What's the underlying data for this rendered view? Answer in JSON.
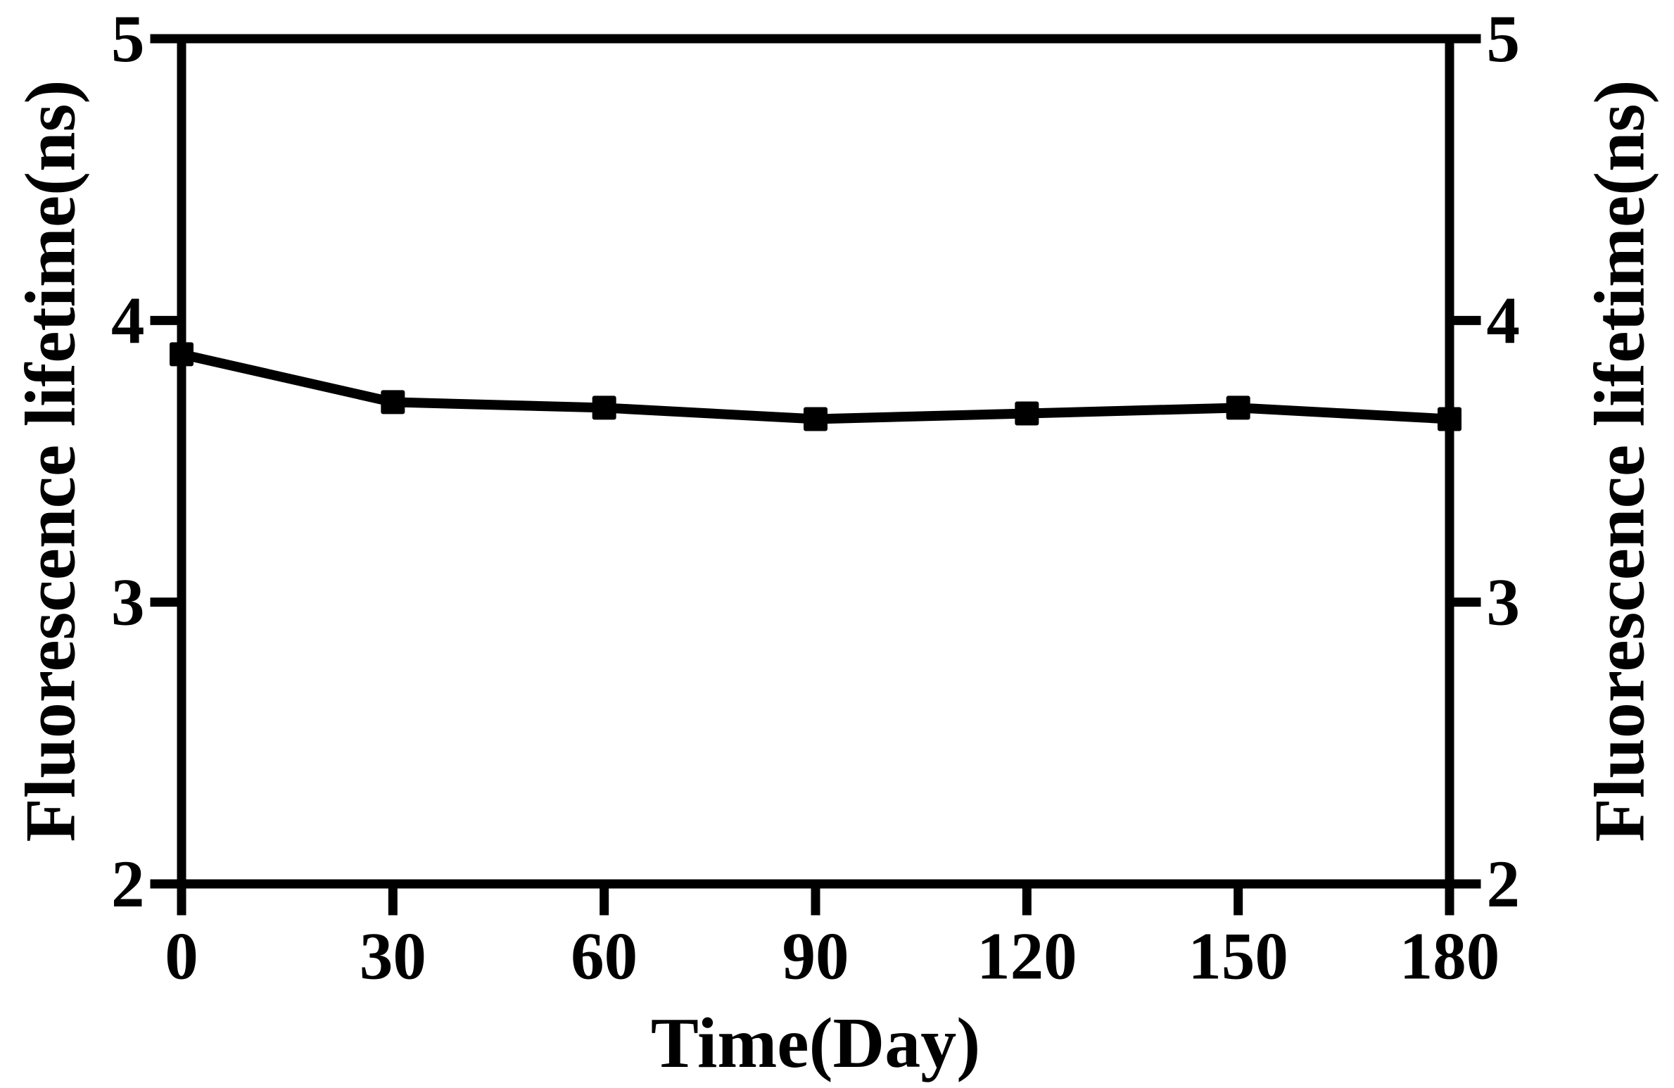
{
  "figure": {
    "background_color": "#ffffff",
    "ink_color": "#000000"
  },
  "chart_data": {
    "type": "line",
    "title": "",
    "xlabel": "Time(Day)",
    "ylabel_left": "Fluorescence lifetime(ns)",
    "ylabel_right": "Fluorescence lifetime(ns)",
    "x": [
      0,
      30,
      60,
      90,
      120,
      150,
      180
    ],
    "series": [
      {
        "name": "Fluorescence lifetime",
        "values": [
          3.88,
          3.71,
          3.69,
          3.65,
          3.67,
          3.69,
          3.65
        ]
      }
    ],
    "xlim": [
      0,
      180
    ],
    "ylim": [
      2,
      5
    ],
    "x_ticks": [
      0,
      30,
      60,
      90,
      120,
      150,
      180
    ],
    "y_ticks_left": [
      2,
      3,
      4,
      5
    ],
    "y_ticks_right": [
      2,
      3,
      4,
      5
    ],
    "grid": false,
    "legend": "none",
    "marker": "square",
    "line_color": "#000000",
    "marker_color": "#000000"
  }
}
